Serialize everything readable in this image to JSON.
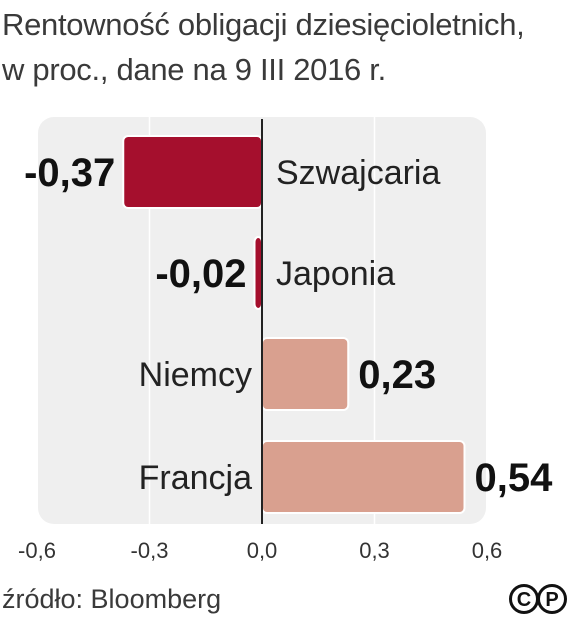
{
  "title": {
    "line1": "Rentowność obligacji dziesięcioletnich,",
    "line2": "w proc., dane na 9 III 2016 r."
  },
  "source": "źródło: Bloomberg",
  "logo": {
    "letters": [
      "C",
      "P"
    ]
  },
  "colors": {
    "negative": "#a50f2d",
    "positive": "#d9a08f",
    "panel": "#efefef",
    "grid": "#ffffff",
    "zero_axis": "#222222"
  },
  "chart_data": {
    "type": "bar",
    "orientation": "horizontal",
    "categories": [
      "Szwajcaria",
      "Japonia",
      "Niemcy",
      "Francja"
    ],
    "values": [
      -0.37,
      -0.02,
      0.23,
      0.54
    ],
    "value_labels": [
      "-0,37",
      "-0,02",
      "0,23",
      "0,54"
    ],
    "xlim": [
      -0.6,
      0.6
    ],
    "xticks": [
      -0.6,
      -0.3,
      0.0,
      0.3,
      0.6
    ],
    "xtick_labels": [
      "-0,6",
      "-0,3",
      "0,0",
      "0,3",
      "0,6"
    ],
    "grid": true,
    "legend": "none"
  }
}
